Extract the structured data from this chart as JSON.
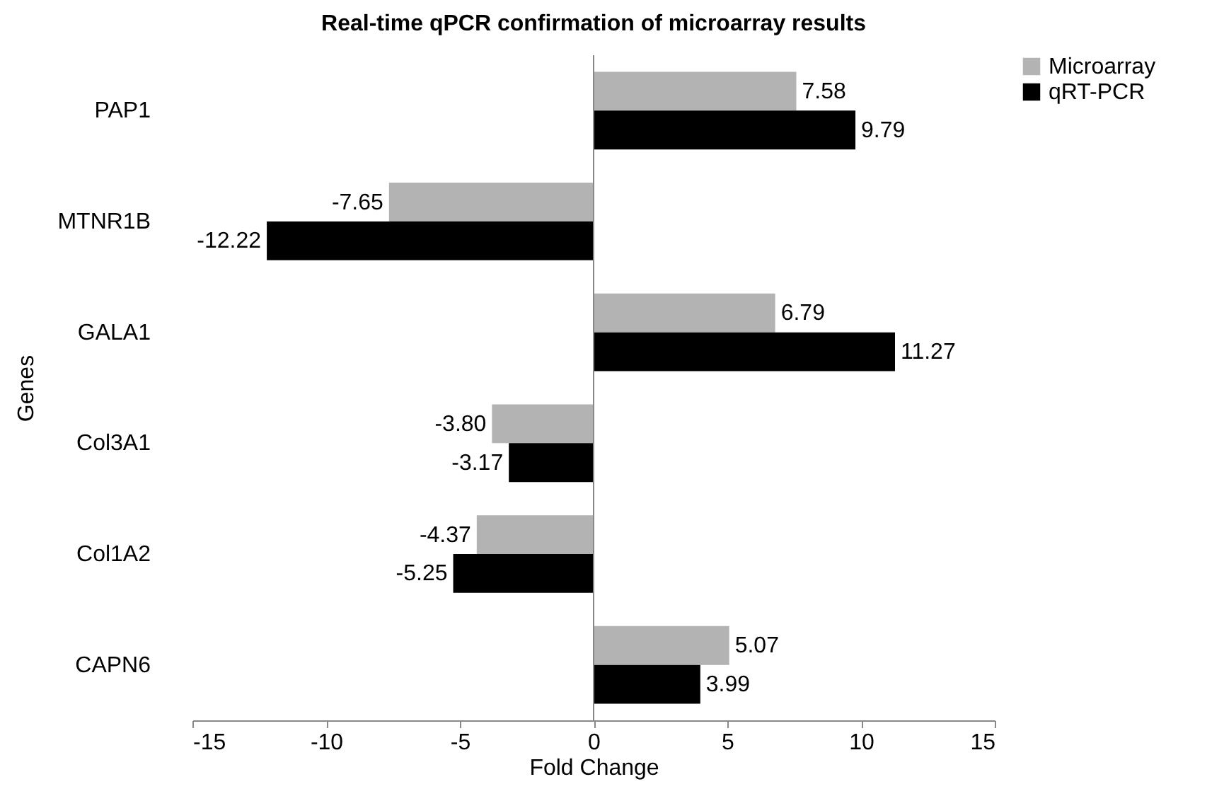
{
  "chart_data": {
    "type": "bar",
    "orientation": "horizontal",
    "title": "Real-time qPCR confirmation of microarray results",
    "xlabel": "Fold Change",
    "ylabel": "Genes",
    "categories": [
      "PAP1",
      "MTNR1B",
      "GALA1",
      "Col3A1",
      "Col1A2",
      "CAPN6"
    ],
    "series": [
      {
        "name": "Microarray",
        "color": "#b3b3b3",
        "values": [
          7.58,
          -7.65,
          6.79,
          -3.8,
          -4.37,
          5.07
        ],
        "value_labels": [
          "7.58",
          "-7.65",
          "6.79",
          "-3.80",
          "-4.37",
          "5.07"
        ]
      },
      {
        "name": "qRT-PCR",
        "color": "#000000",
        "values": [
          9.79,
          -12.22,
          11.27,
          -3.17,
          -5.25,
          3.99
        ],
        "value_labels": [
          "9.79",
          "-12.22",
          "11.27",
          "-3.17",
          "-5.25",
          "3.99"
        ]
      }
    ],
    "xlim": [
      -15,
      15
    ],
    "xticks": [
      -15,
      -10,
      -5,
      0,
      5,
      10,
      15
    ],
    "ref_lines": [
      {
        "axis": "x",
        "value": 0,
        "color": "#888888"
      }
    ],
    "legend": "right"
  }
}
